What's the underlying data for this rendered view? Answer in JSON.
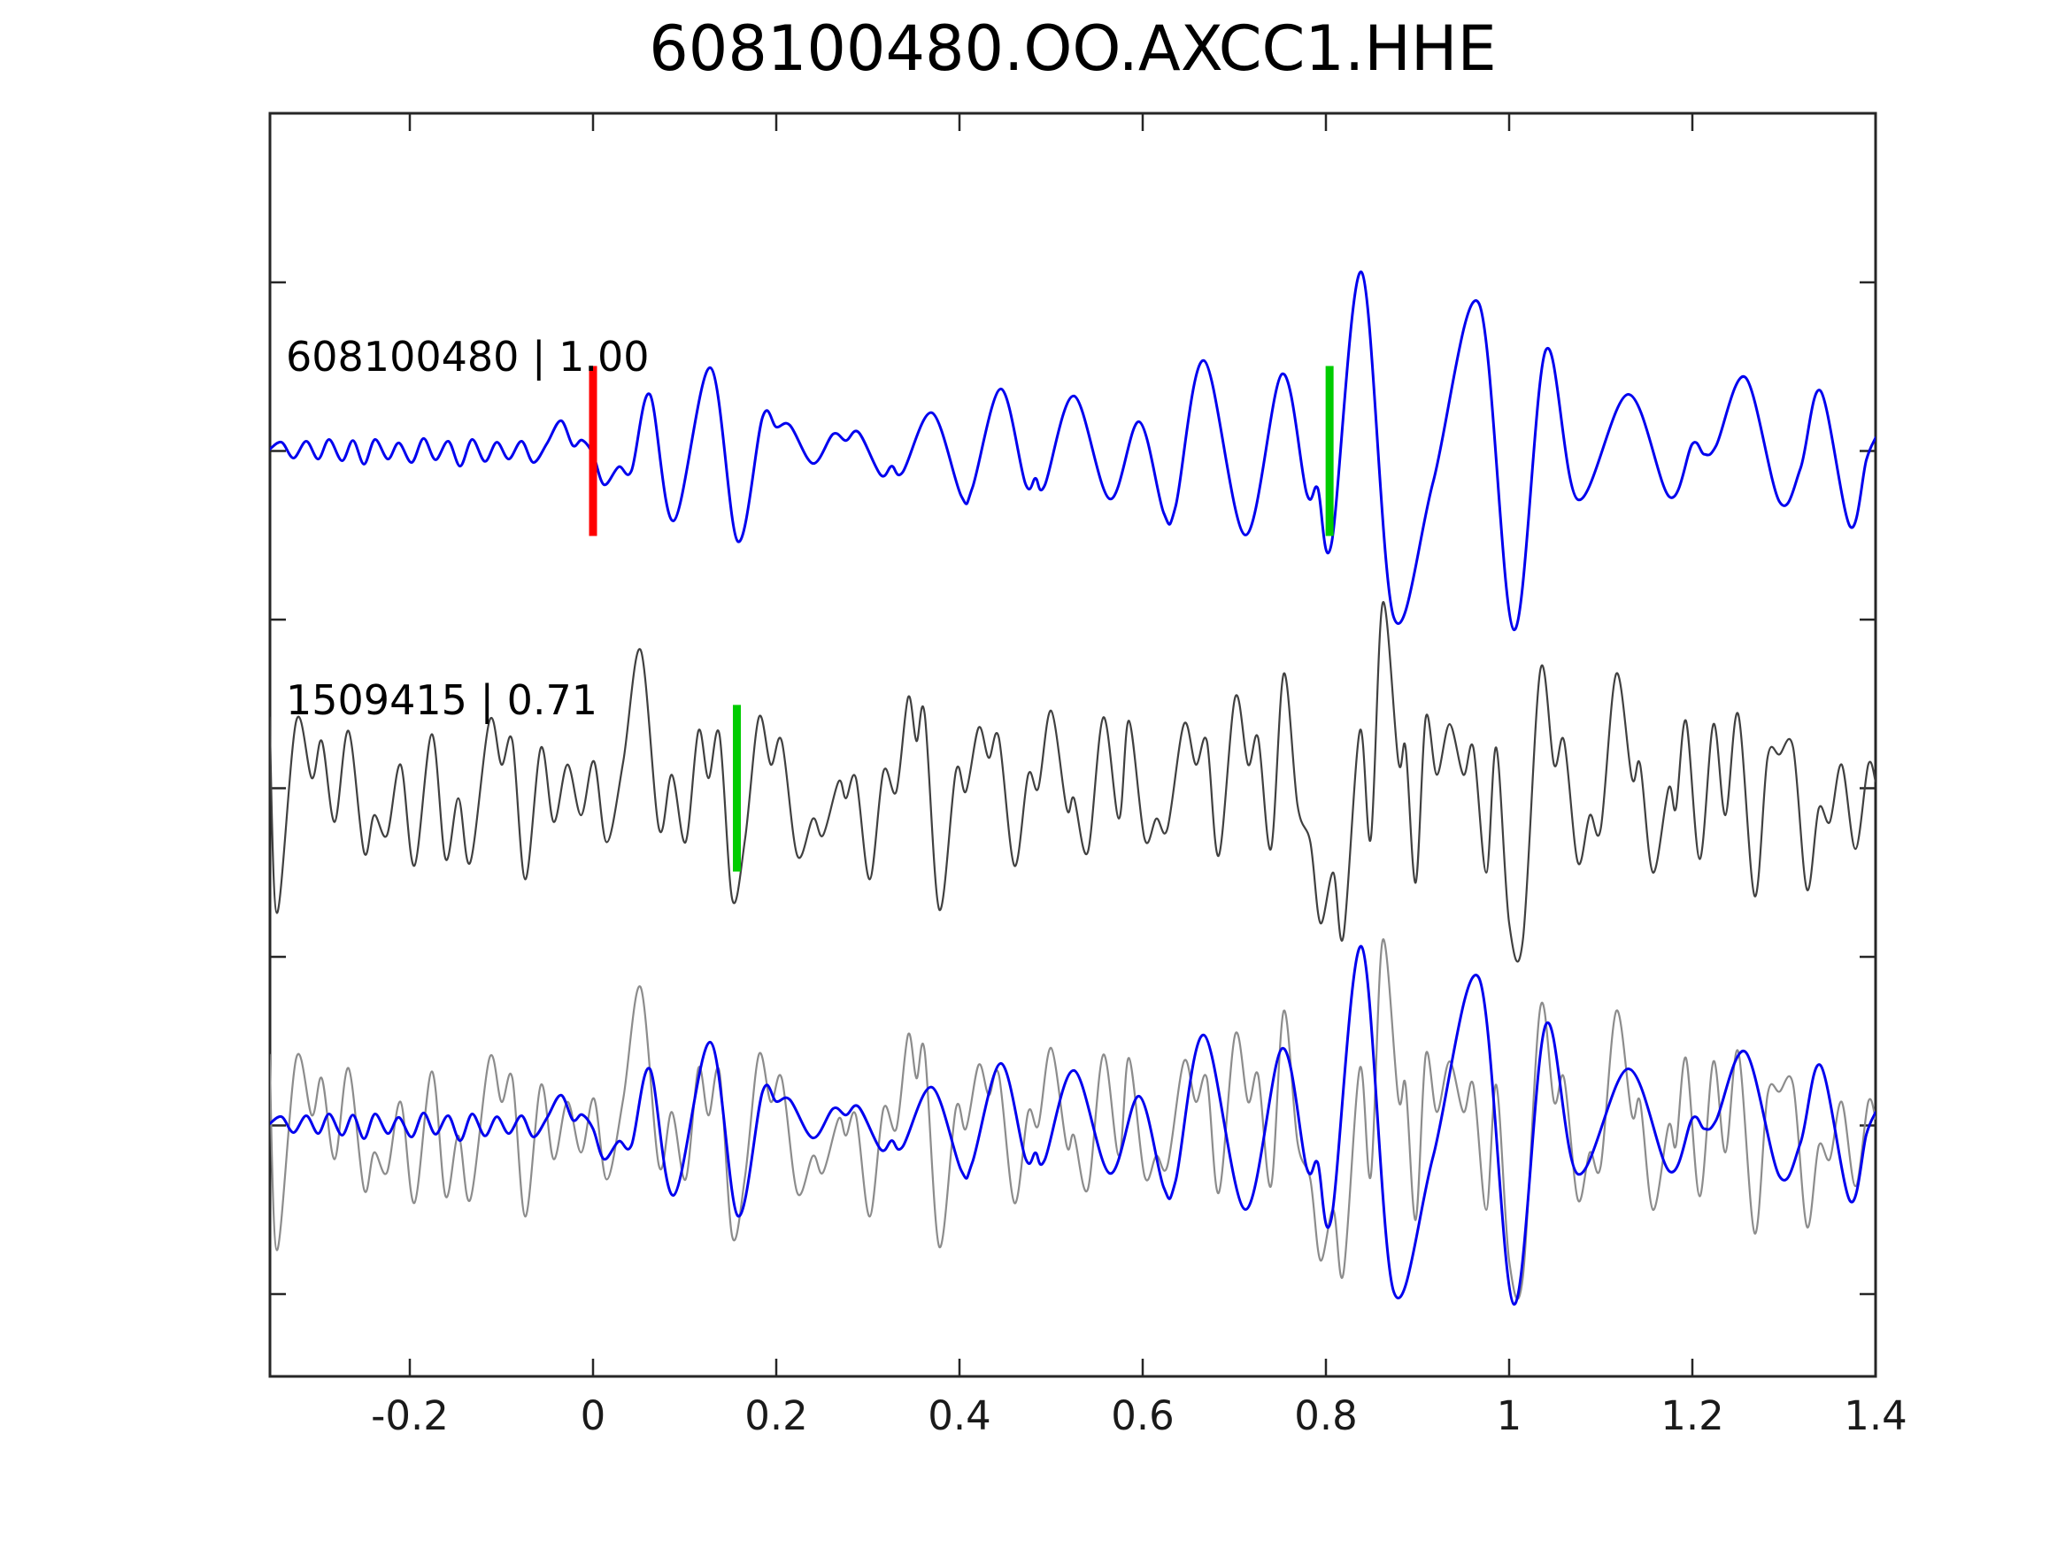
{
  "title": "608100480.OO.AXCC1.HHE",
  "colors": {
    "template_trace": "#0000ee",
    "detection_trace": "#404040",
    "overlay_detection_trace": "#8c8c8c",
    "pick_red": "#ff0000",
    "pick_green": "#00cc00",
    "axis": "#262626",
    "text": "#000000",
    "background": "#ffffff"
  },
  "chart_data": {
    "type": "line",
    "description_visible_text_only": "",
    "x_range": [
      -0.353,
      1.4
    ],
    "x_ticks": [
      {
        "value": -0.2,
        "label": "-0.2"
      },
      {
        "value": 0.0,
        "label": "0"
      },
      {
        "value": 0.2,
        "label": "0.2"
      },
      {
        "value": 0.4,
        "label": "0.4"
      },
      {
        "value": 0.6,
        "label": "0.6"
      },
      {
        "value": 0.8,
        "label": "0.8"
      },
      {
        "value": 1.0,
        "label": "1"
      },
      {
        "value": 1.2,
        "label": "1.2"
      },
      {
        "value": 1.4,
        "label": "1.4"
      }
    ],
    "y_tick_offsets": [
      0.5,
      0,
      -0.5,
      -1,
      -1.5,
      -2,
      -2.5
    ],
    "traces": [
      {
        "id": "608100480",
        "correlation": "1.00",
        "label": "608100480 | 1.00",
        "color": "#0000ee",
        "offset": 0,
        "points": [
          [
            -0.353,
            0.005
          ],
          [
            -0.34,
            0.026
          ],
          [
            -0.327,
            -0.021
          ],
          [
            -0.313,
            0.029
          ],
          [
            -0.3,
            -0.024
          ],
          [
            -0.288,
            0.034
          ],
          [
            -0.274,
            -0.029
          ],
          [
            -0.262,
            0.031
          ],
          [
            -0.25,
            -0.039
          ],
          [
            -0.238,
            0.034
          ],
          [
            -0.224,
            -0.024
          ],
          [
            -0.212,
            0.024
          ],
          [
            -0.198,
            -0.034
          ],
          [
            -0.185,
            0.037
          ],
          [
            -0.172,
            -0.026
          ],
          [
            -0.158,
            0.029
          ],
          [
            -0.145,
            -0.045
          ],
          [
            -0.132,
            0.034
          ],
          [
            -0.118,
            -0.031
          ],
          [
            -0.105,
            0.026
          ],
          [
            -0.092,
            -0.024
          ],
          [
            -0.078,
            0.029
          ],
          [
            -0.065,
            -0.034
          ],
          [
            -0.05,
            0.024
          ],
          [
            -0.035,
            0.09
          ],
          [
            -0.022,
            0.016
          ],
          [
            -0.012,
            0.032
          ],
          [
            0.0,
            -0.01
          ],
          [
            0.012,
            -0.1
          ],
          [
            0.028,
            -0.047
          ],
          [
            0.042,
            -0.058
          ],
          [
            0.062,
            0.168
          ],
          [
            0.088,
            -0.207
          ],
          [
            0.128,
            0.247
          ],
          [
            0.158,
            -0.268
          ],
          [
            0.185,
            0.1
          ],
          [
            0.2,
            0.071
          ],
          [
            0.215,
            0.076
          ],
          [
            0.24,
            -0.037
          ],
          [
            0.262,
            0.05
          ],
          [
            0.276,
            0.031
          ],
          [
            0.29,
            0.055
          ],
          [
            0.314,
            -0.071
          ],
          [
            0.326,
            -0.045
          ],
          [
            0.338,
            -0.063
          ],
          [
            0.37,
            0.113
          ],
          [
            0.402,
            -0.134
          ],
          [
            0.414,
            -0.11
          ],
          [
            0.445,
            0.184
          ],
          [
            0.472,
            -0.097
          ],
          [
            0.483,
            -0.081
          ],
          [
            0.493,
            -0.102
          ],
          [
            0.525,
            0.163
          ],
          [
            0.564,
            -0.142
          ],
          [
            0.596,
            0.087
          ],
          [
            0.623,
            -0.184
          ],
          [
            0.636,
            -0.163
          ],
          [
            0.667,
            0.268
          ],
          [
            0.712,
            -0.249
          ],
          [
            0.752,
            0.228
          ],
          [
            0.779,
            -0.126
          ],
          [
            0.791,
            -0.11
          ],
          [
            0.806,
            -0.276
          ],
          [
            0.839,
            0.53
          ],
          [
            0.874,
            -0.493
          ],
          [
            0.917,
            -0.092
          ],
          [
            0.967,
            0.438
          ],
          [
            1.005,
            -0.53
          ],
          [
            1.04,
            0.299
          ],
          [
            1.075,
            -0.144
          ],
          [
            1.13,
            0.168
          ],
          [
            1.175,
            -0.136
          ],
          [
            1.2,
            0.021
          ],
          [
            1.213,
            -0.01
          ],
          [
            1.226,
            0.016
          ],
          [
            1.258,
            0.218
          ],
          [
            1.295,
            -0.15
          ],
          [
            1.318,
            -0.052
          ],
          [
            1.34,
            0.178
          ],
          [
            1.372,
            -0.223
          ],
          [
            1.39,
            -0.026
          ],
          [
            1.4,
            0.039
          ]
        ]
      },
      {
        "id": "1509415",
        "correlation": "0.71",
        "label": "1509415 | 0.71",
        "color": "#404040",
        "offset": -1,
        "points": [
          [
            -0.353,
            0.21
          ],
          [
            -0.345,
            -0.37
          ],
          [
            -0.324,
            0.2
          ],
          [
            -0.307,
            0.03
          ],
          [
            -0.296,
            0.14
          ],
          [
            -0.282,
            -0.1
          ],
          [
            -0.267,
            0.17
          ],
          [
            -0.25,
            -0.19
          ],
          [
            -0.239,
            -0.08
          ],
          [
            -0.225,
            -0.14
          ],
          [
            -0.21,
            0.07
          ],
          [
            -0.195,
            -0.23
          ],
          [
            -0.176,
            0.16
          ],
          [
            -0.161,
            -0.21
          ],
          [
            -0.147,
            -0.03
          ],
          [
            -0.134,
            -0.22
          ],
          [
            -0.113,
            0.2
          ],
          [
            -0.1,
            0.07
          ],
          [
            -0.088,
            0.14
          ],
          [
            -0.074,
            -0.27
          ],
          [
            -0.057,
            0.12
          ],
          [
            -0.043,
            -0.1
          ],
          [
            -0.028,
            0.07
          ],
          [
            -0.013,
            -0.08
          ],
          [
            0.001,
            0.08
          ],
          [
            0.015,
            -0.16
          ],
          [
            0.033,
            0.08
          ],
          [
            0.052,
            0.41
          ],
          [
            0.072,
            -0.12
          ],
          [
            0.086,
            0.04
          ],
          [
            0.101,
            -0.16
          ],
          [
            0.115,
            0.17
          ],
          [
            0.126,
            0.03
          ],
          [
            0.138,
            0.16
          ],
          [
            0.152,
            -0.33
          ],
          [
            0.166,
            -0.15
          ],
          [
            0.181,
            0.21
          ],
          [
            0.194,
            0.07
          ],
          [
            0.206,
            0.14
          ],
          [
            0.223,
            -0.2
          ],
          [
            0.24,
            -0.09
          ],
          [
            0.251,
            -0.14
          ],
          [
            0.268,
            0.02
          ],
          [
            0.276,
            -0.03
          ],
          [
            0.287,
            0.03
          ],
          [
            0.302,
            -0.27
          ],
          [
            0.317,
            0.05
          ],
          [
            0.331,
            -0.01
          ],
          [
            0.344,
            0.27
          ],
          [
            0.353,
            0.14
          ],
          [
            0.362,
            0.22
          ],
          [
            0.378,
            -0.36
          ],
          [
            0.396,
            0.05
          ],
          [
            0.407,
            -0.01
          ],
          [
            0.421,
            0.18
          ],
          [
            0.432,
            0.09
          ],
          [
            0.443,
            0.15
          ],
          [
            0.46,
            -0.23
          ],
          [
            0.475,
            0.04
          ],
          [
            0.486,
            0.0
          ],
          [
            0.5,
            0.23
          ],
          [
            0.517,
            -0.06
          ],
          [
            0.525,
            -0.03
          ],
          [
            0.54,
            -0.19
          ],
          [
            0.557,
            0.21
          ],
          [
            0.574,
            -0.09
          ],
          [
            0.585,
            0.2
          ],
          [
            0.602,
            -0.15
          ],
          [
            0.615,
            -0.09
          ],
          [
            0.627,
            -0.12
          ],
          [
            0.645,
            0.19
          ],
          [
            0.658,
            0.07
          ],
          [
            0.67,
            0.14
          ],
          [
            0.683,
            -0.2
          ],
          [
            0.701,
            0.27
          ],
          [
            0.715,
            0.07
          ],
          [
            0.726,
            0.15
          ],
          [
            0.74,
            -0.18
          ],
          [
            0.754,
            0.34
          ],
          [
            0.769,
            -0.05
          ],
          [
            0.783,
            -0.16
          ],
          [
            0.794,
            -0.4
          ],
          [
            0.808,
            -0.25
          ],
          [
            0.819,
            -0.44
          ],
          [
            0.837,
            0.17
          ],
          [
            0.849,
            -0.15
          ],
          [
            0.862,
            0.55
          ],
          [
            0.879,
            0.08
          ],
          [
            0.887,
            0.12
          ],
          [
            0.898,
            -0.28
          ],
          [
            0.909,
            0.21
          ],
          [
            0.921,
            0.04
          ],
          [
            0.935,
            0.19
          ],
          [
            0.95,
            0.04
          ],
          [
            0.961,
            0.12
          ],
          [
            0.975,
            -0.25
          ],
          [
            0.986,
            0.12
          ],
          [
            1.0,
            -0.4
          ],
          [
            1.015,
            -0.45
          ],
          [
            1.034,
            0.35
          ],
          [
            1.049,
            0.07
          ],
          [
            1.06,
            0.14
          ],
          [
            1.075,
            -0.22
          ],
          [
            1.088,
            -0.08
          ],
          [
            1.1,
            -0.12
          ],
          [
            1.117,
            0.34
          ],
          [
            1.134,
            0.03
          ],
          [
            1.143,
            0.07
          ],
          [
            1.157,
            -0.25
          ],
          [
            1.174,
            0.0
          ],
          [
            1.182,
            -0.06
          ],
          [
            1.193,
            0.2
          ],
          [
            1.208,
            -0.21
          ],
          [
            1.223,
            0.19
          ],
          [
            1.236,
            -0.08
          ],
          [
            1.25,
            0.22
          ],
          [
            1.268,
            -0.32
          ],
          [
            1.282,
            0.09
          ],
          [
            1.295,
            0.1
          ],
          [
            1.31,
            0.12
          ],
          [
            1.325,
            -0.3
          ],
          [
            1.338,
            -0.06
          ],
          [
            1.35,
            -0.1
          ],
          [
            1.363,
            0.07
          ],
          [
            1.378,
            -0.18
          ],
          [
            1.392,
            0.07
          ],
          [
            1.4,
            0.02
          ]
        ]
      },
      {
        "name": "overlay-detection",
        "color": "#8c8c8c",
        "offset": -2,
        "same_points_as": 1
      },
      {
        "name": "overlay-template",
        "color": "#0000ee",
        "offset": -2,
        "same_points_as": 0
      }
    ],
    "markers": [
      {
        "name": "template-pick-red",
        "color": "#ff0000",
        "t": 0.0,
        "offset": 0,
        "half_height": 0.252
      },
      {
        "name": "template-pick-green",
        "color": "#00cc00",
        "t": 0.804,
        "offset": 0,
        "half_height": 0.252
      },
      {
        "name": "detection-pick-green",
        "color": "#00cc00",
        "t": 0.157,
        "offset": -1,
        "half_height": 0.247
      }
    ]
  }
}
